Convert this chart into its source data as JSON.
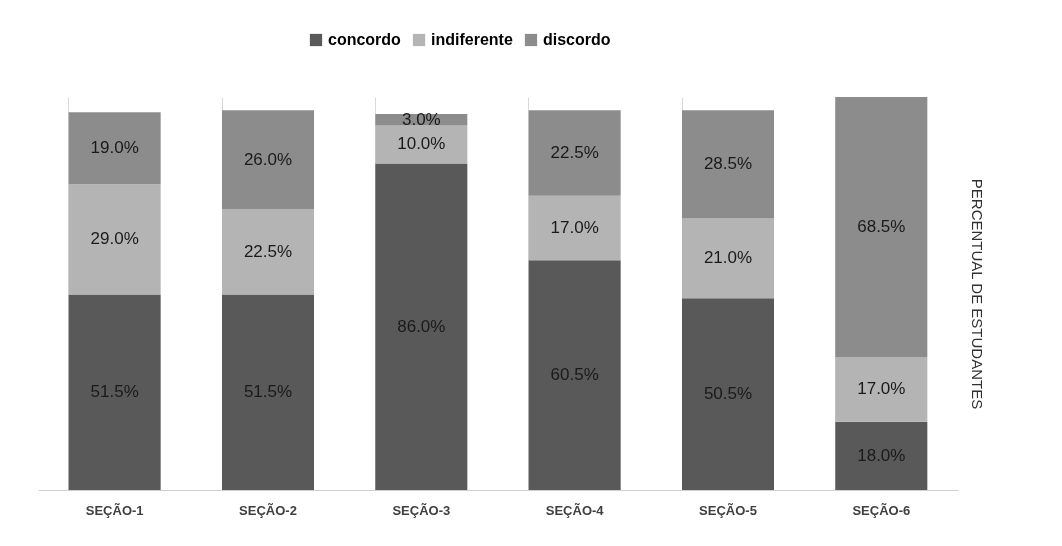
{
  "chart_data": {
    "type": "bar",
    "stacked": true,
    "categories": [
      "SEÇÃO-1",
      "SEÇÃO-2",
      "SEÇÃO-3",
      "SEÇÃO-4",
      "SEÇÃO-5",
      "SEÇÃO-6"
    ],
    "series": [
      {
        "name": "concordo",
        "color": "#595959",
        "values": [
          51.5,
          51.5,
          86.0,
          60.5,
          50.5,
          18.0
        ],
        "value_labels": [
          "51.5%",
          "51.5%",
          "86.0%",
          "60.5%",
          "50.5%",
          "18.0%"
        ]
      },
      {
        "name": "indiferente",
        "color": "#b4b4b4",
        "values": [
          29.0,
          22.5,
          10.0,
          17.0,
          21.0,
          17.0
        ],
        "value_labels": [
          "29.0%",
          "22.5%",
          "10.0%",
          "17.0%",
          "21.0%",
          "17.0%"
        ]
      },
      {
        "name": "discordo",
        "color": "#8c8c8c",
        "values": [
          19.0,
          26.0,
          3.0,
          22.5,
          28.5,
          68.5
        ],
        "value_labels": [
          "19.0%",
          "26.0%",
          "3.0%",
          "22.5%",
          "28.5%",
          "68.5%"
        ]
      }
    ],
    "ylabel": "PERCENTUAL DE ESTUDANTES",
    "legend": "top",
    "grid": "x"
  }
}
